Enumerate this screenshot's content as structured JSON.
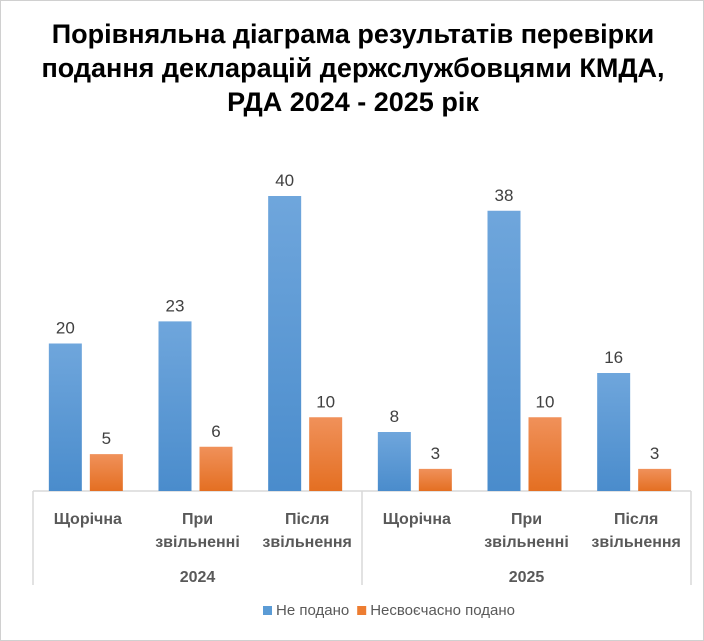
{
  "chart_data": {
    "type": "bar",
    "title": "Порівняльна діаграма результатів перевірки подання декларацій держслужбовцями КМДА, РДА 2024 - 2025 рік",
    "groups": [
      {
        "label": "2024",
        "categories": [
          [
            "Щорічна"
          ],
          [
            "При",
            "звільненні"
          ],
          [
            "Після",
            "звільнення"
          ]
        ]
      },
      {
        "label": "2025",
        "categories": [
          [
            "Щорічна"
          ],
          [
            "При",
            "звільненні"
          ],
          [
            "Після",
            "звільнення"
          ]
        ]
      }
    ],
    "series": [
      {
        "name": "Не подано",
        "color": "#5b9bd5",
        "values": [
          20,
          23,
          40,
          8,
          38,
          16
        ]
      },
      {
        "name": "Несвоєчасно подано",
        "color": "#ed7d31",
        "values": [
          5,
          6,
          10,
          3,
          10,
          3
        ]
      }
    ],
    "ylim": [
      0,
      40
    ],
    "grid": false,
    "legend": "bottom"
  }
}
